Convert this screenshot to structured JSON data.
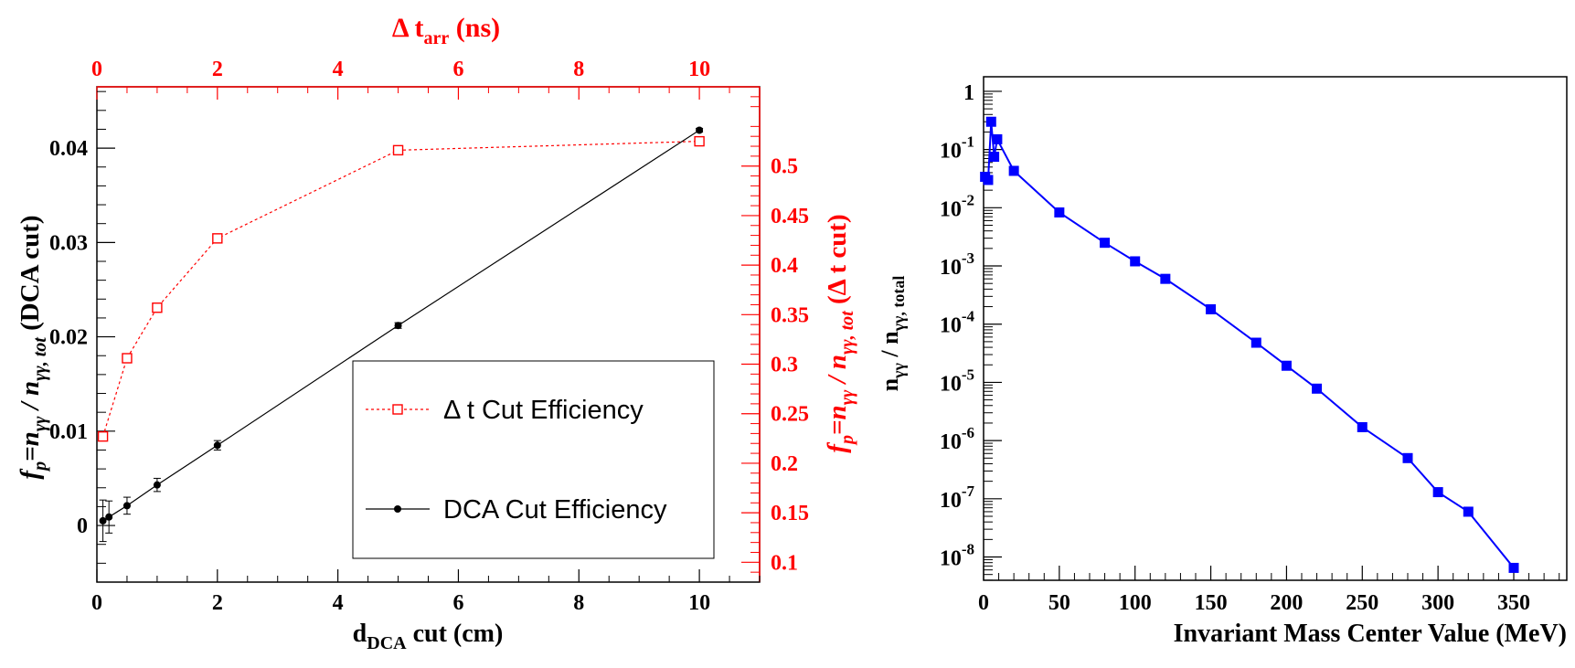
{
  "chart_data": [
    {
      "type": "line",
      "xlabel": "d",
      "xlabel_sub": "DCA",
      "xlabel_suffix": " cut (cm)",
      "ylabel": "f",
      "ylabel_sub": "p",
      "ylabel_mid": "=n",
      "ylabel_sub2": "γγ",
      "ylabel_rest": " / n",
      "ylabel_sub3": "γγ, tot",
      "ylabel_suffix": " (DCA cut)",
      "x2label": "Δ t",
      "x2label_sub": "arr",
      "x2label_suffix": " (ns)",
      "y2label": "f",
      "y2label_sub": "p",
      "y2label_mid": "=n",
      "y2label_sub2": "γγ",
      "y2label_rest": " / n",
      "y2label_sub3": "γγ, tot",
      "y2label_suffix": " (Δ t cut)",
      "xlim": [
        0,
        11
      ],
      "ylim": [
        -0.006,
        0.0465
      ],
      "x2lim": [
        0,
        11
      ],
      "y2lim": [
        0.08,
        0.58
      ],
      "x_ticks": [
        "0",
        "2",
        "4",
        "6",
        "8",
        "10"
      ],
      "x_tick_values": [
        0,
        2,
        4,
        6,
        8,
        10
      ],
      "y_ticks": [
        "0",
        "0.01",
        "0.02",
        "0.03",
        "0.04"
      ],
      "y_tick_values": [
        0,
        0.01,
        0.02,
        0.03,
        0.04
      ],
      "x2_ticks": [
        "0",
        "2",
        "4",
        "6",
        "8",
        "10"
      ],
      "x2_tick_values": [
        0,
        2,
        4,
        6,
        8,
        10
      ],
      "y2_ticks": [
        "0.1",
        "0.15",
        "0.2",
        "0.25",
        "0.3",
        "0.35",
        "0.4",
        "0.45",
        "0.5"
      ],
      "y2_tick_values": [
        0.1,
        0.15,
        0.2,
        0.25,
        0.3,
        0.35,
        0.4,
        0.45,
        0.5
      ],
      "legend_placement": "center-right",
      "series": [
        {
          "name": "Δ t Cut Efficiency",
          "axis": "secondary",
          "color": "#ff0000",
          "marker": "open-square",
          "line": "dotted",
          "x": [
            0.1,
            0.5,
            1,
            2,
            5,
            10
          ],
          "y": [
            0.227,
            0.306,
            0.357,
            0.427,
            0.516,
            0.525
          ]
        },
        {
          "name": "DCA Cut Efficiency",
          "axis": "primary",
          "color": "#000000",
          "marker": "filled-circle",
          "line": "solid",
          "x": [
            0.1,
            0.2,
            0.5,
            1,
            2,
            5,
            10
          ],
          "y": [
            0.0005,
            0.0009,
            0.0021,
            0.0043,
            0.0085,
            0.0212,
            0.0419
          ],
          "yerr": [
            0.0022,
            0.0017,
            0.0009,
            0.0007,
            0.0005,
            0.0003,
            0.0002
          ]
        }
      ]
    },
    {
      "type": "line",
      "xlabel": "Invariant Mass Center Value (MeV)",
      "ylabel": "n",
      "ylabel_sub": "γγ",
      "ylabel_rest": " / n",
      "ylabel_sub2": "γγ, total",
      "xlim": [
        0,
        385
      ],
      "ylim_log10": [
        -8.4,
        0.25
      ],
      "yscale": "log",
      "x_ticks": [
        "0",
        "50",
        "100",
        "150",
        "200",
        "250",
        "300",
        "350"
      ],
      "x_tick_values": [
        0,
        50,
        100,
        150,
        200,
        250,
        300,
        350
      ],
      "y_ticks": [
        {
          "base": "10",
          "exp": "-8",
          "value": -8
        },
        {
          "base": "10",
          "exp": "-7",
          "value": -7
        },
        {
          "base": "10",
          "exp": "-6",
          "value": -6
        },
        {
          "base": "10",
          "exp": "-5",
          "value": -5
        },
        {
          "base": "10",
          "exp": "-4",
          "value": -4
        },
        {
          "base": "10",
          "exp": "-3",
          "value": -3
        },
        {
          "base": "10",
          "exp": "-2",
          "value": -2
        },
        {
          "base": "10",
          "exp": "-1",
          "value": -1
        },
        {
          "base": "1",
          "exp": "",
          "value": 0
        }
      ],
      "series": [
        {
          "color": "#0000ff",
          "marker": "filled-square",
          "line": "solid",
          "x": [
            1,
            3,
            5,
            7,
            9,
            20,
            50,
            80,
            100,
            120,
            150,
            180,
            200,
            220,
            250,
            280,
            300,
            320,
            350
          ],
          "y": [
            0.034,
            0.03,
            0.3,
            0.075,
            0.15,
            0.043,
            0.0083,
            0.0025,
            0.0012,
            0.0006,
            0.00018,
            4.8e-05,
            1.93e-05,
            7.8e-06,
            1.7e-06,
            5e-07,
            1.3e-07,
            6e-08,
            6.5e-09
          ]
        }
      ]
    }
  ]
}
